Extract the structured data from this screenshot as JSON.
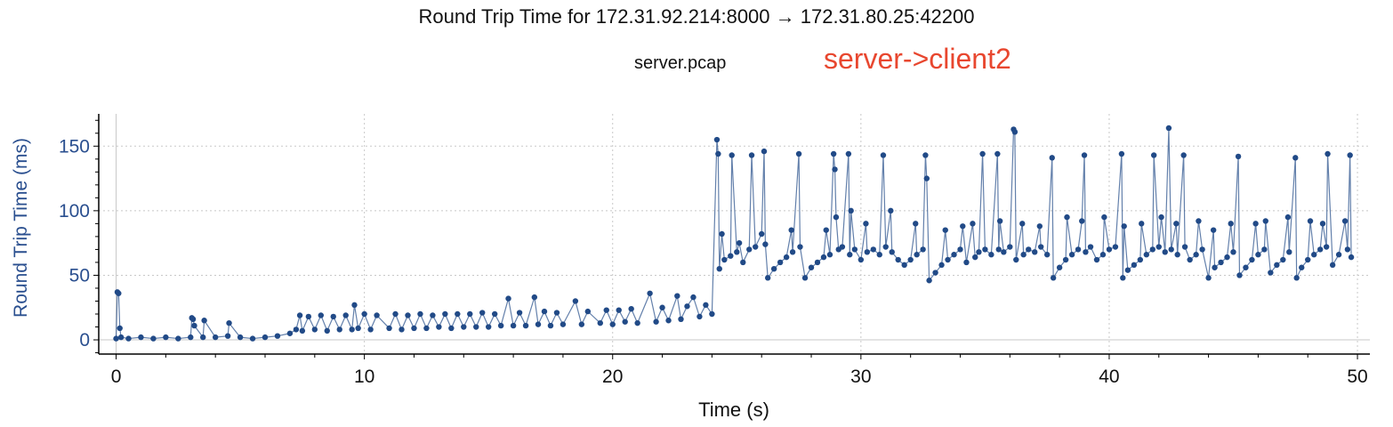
{
  "window": {
    "title": "Round Trip Time for 172.31.92.214:8000 → 172.31.80.25:42200",
    "subtitle": "server.pcap",
    "annotation": "server->client2"
  },
  "colors": {
    "series": "#214a87",
    "axis_label": "#2a4f8f",
    "annotation": "#e8472f",
    "grid": "#c8c8c8"
  },
  "chart_data": {
    "type": "scatter",
    "title": "Round Trip Time for 172.31.92.214:8000 → 172.31.80.25:42200",
    "xlabel": "Time (s)",
    "ylabel": "Round Trip Time (ms)",
    "xlim": [
      -0.7,
      50.5
    ],
    "ylim": [
      -11,
      175
    ],
    "xticks": [
      0,
      10,
      20,
      30,
      40,
      50
    ],
    "yticks": [
      0,
      50,
      100,
      150
    ],
    "grid": true,
    "connected": true,
    "series": [
      {
        "points": [
          [
            0,
            1
          ],
          [
            0.05,
            37
          ],
          [
            0.1,
            36
          ],
          [
            0.15,
            9
          ],
          [
            0.2,
            2
          ],
          [
            0.5,
            1
          ],
          [
            1,
            2
          ],
          [
            1.5,
            1
          ],
          [
            2,
            2
          ],
          [
            2.5,
            1
          ],
          [
            3,
            2
          ],
          [
            3.05,
            17
          ],
          [
            3.1,
            16
          ],
          [
            3.15,
            11
          ],
          [
            3.5,
            2
          ],
          [
            3.55,
            15
          ],
          [
            4,
            2
          ],
          [
            4.5,
            3
          ],
          [
            4.55,
            13
          ],
          [
            5,
            2
          ],
          [
            5.5,
            1
          ],
          [
            6,
            2
          ],
          [
            6.5,
            3
          ],
          [
            7,
            5
          ],
          [
            7.25,
            8
          ],
          [
            7.4,
            19
          ],
          [
            7.5,
            7
          ],
          [
            7.75,
            18
          ],
          [
            8,
            8
          ],
          [
            8.25,
            19
          ],
          [
            8.5,
            7
          ],
          [
            8.75,
            18
          ],
          [
            9,
            8
          ],
          [
            9.25,
            19
          ],
          [
            9.5,
            8
          ],
          [
            9.6,
            27
          ],
          [
            9.75,
            9
          ],
          [
            10,
            20
          ],
          [
            10.25,
            8
          ],
          [
            10.5,
            19
          ],
          [
            11,
            9
          ],
          [
            11.25,
            20
          ],
          [
            11.5,
            8
          ],
          [
            11.75,
            19
          ],
          [
            12,
            9
          ],
          [
            12.25,
            20
          ],
          [
            12.5,
            9
          ],
          [
            12.75,
            19
          ],
          [
            13,
            10
          ],
          [
            13.25,
            20
          ],
          [
            13.5,
            9
          ],
          [
            13.75,
            20
          ],
          [
            14,
            10
          ],
          [
            14.25,
            20
          ],
          [
            14.5,
            10
          ],
          [
            14.75,
            21
          ],
          [
            15,
            10
          ],
          [
            15.25,
            20
          ],
          [
            15.5,
            11
          ],
          [
            15.8,
            32
          ],
          [
            16,
            11
          ],
          [
            16.25,
            21
          ],
          [
            16.5,
            11
          ],
          [
            16.85,
            33
          ],
          [
            17,
            12
          ],
          [
            17.25,
            22
          ],
          [
            17.5,
            11
          ],
          [
            17.75,
            21
          ],
          [
            18,
            12
          ],
          [
            18.5,
            30
          ],
          [
            18.75,
            12
          ],
          [
            19,
            22
          ],
          [
            19.5,
            13
          ],
          [
            19.75,
            23
          ],
          [
            20,
            12
          ],
          [
            20.25,
            23
          ],
          [
            20.5,
            14
          ],
          [
            20.75,
            24
          ],
          [
            21,
            13
          ],
          [
            21.5,
            36
          ],
          [
            21.75,
            14
          ],
          [
            22,
            25
          ],
          [
            22.25,
            15
          ],
          [
            22.6,
            34
          ],
          [
            22.75,
            16
          ],
          [
            23,
            26
          ],
          [
            23.25,
            33
          ],
          [
            23.5,
            18
          ],
          [
            23.75,
            27
          ],
          [
            24,
            20
          ],
          [
            24.2,
            155
          ],
          [
            24.25,
            144
          ],
          [
            24.3,
            55
          ],
          [
            24.4,
            82
          ],
          [
            24.5,
            62
          ],
          [
            24.75,
            65
          ],
          [
            24.8,
            143
          ],
          [
            25,
            68
          ],
          [
            25.1,
            75
          ],
          [
            25.25,
            60
          ],
          [
            25.5,
            70
          ],
          [
            25.6,
            143
          ],
          [
            25.75,
            72
          ],
          [
            26,
            82
          ],
          [
            26.1,
            146
          ],
          [
            26.15,
            74
          ],
          [
            26.25,
            48
          ],
          [
            26.5,
            55
          ],
          [
            26.75,
            60
          ],
          [
            27,
            64
          ],
          [
            27.2,
            85
          ],
          [
            27.25,
            68
          ],
          [
            27.5,
            144
          ],
          [
            27.55,
            72
          ],
          [
            27.75,
            48
          ],
          [
            28,
            56
          ],
          [
            28.25,
            60
          ],
          [
            28.5,
            64
          ],
          [
            28.6,
            85
          ],
          [
            28.75,
            66
          ],
          [
            28.9,
            144
          ],
          [
            28.95,
            132
          ],
          [
            29,
            95
          ],
          [
            29.1,
            70
          ],
          [
            29.25,
            72
          ],
          [
            29.5,
            144
          ],
          [
            29.55,
            66
          ],
          [
            29.6,
            100
          ],
          [
            29.75,
            70
          ],
          [
            30,
            62
          ],
          [
            30.2,
            90
          ],
          [
            30.25,
            68
          ],
          [
            30.5,
            70
          ],
          [
            30.75,
            66
          ],
          [
            30.9,
            143
          ],
          [
            31,
            72
          ],
          [
            31.2,
            100
          ],
          [
            31.25,
            68
          ],
          [
            31.5,
            62
          ],
          [
            31.75,
            58
          ],
          [
            32,
            62
          ],
          [
            32.2,
            90
          ],
          [
            32.25,
            66
          ],
          [
            32.5,
            70
          ],
          [
            32.6,
            143
          ],
          [
            32.65,
            125
          ],
          [
            32.75,
            46
          ],
          [
            33,
            52
          ],
          [
            33.25,
            58
          ],
          [
            33.4,
            85
          ],
          [
            33.5,
            62
          ],
          [
            33.75,
            66
          ],
          [
            34,
            70
          ],
          [
            34.1,
            88
          ],
          [
            34.25,
            60
          ],
          [
            34.5,
            90
          ],
          [
            34.6,
            64
          ],
          [
            34.75,
            68
          ],
          [
            34.9,
            144
          ],
          [
            35,
            70
          ],
          [
            35.25,
            66
          ],
          [
            35.5,
            144
          ],
          [
            35.55,
            70
          ],
          [
            35.6,
            92
          ],
          [
            35.75,
            68
          ],
          [
            36,
            72
          ],
          [
            36.15,
            163
          ],
          [
            36.2,
            161
          ],
          [
            36.25,
            62
          ],
          [
            36.5,
            90
          ],
          [
            36.55,
            66
          ],
          [
            36.75,
            70
          ],
          [
            37,
            68
          ],
          [
            37.2,
            88
          ],
          [
            37.25,
            72
          ],
          [
            37.5,
            66
          ],
          [
            37.7,
            141
          ],
          [
            37.75,
            48
          ],
          [
            38,
            56
          ],
          [
            38.25,
            62
          ],
          [
            38.3,
            95
          ],
          [
            38.5,
            66
          ],
          [
            38.75,
            70
          ],
          [
            38.9,
            92
          ],
          [
            39,
            143
          ],
          [
            39.05,
            68
          ],
          [
            39.25,
            72
          ],
          [
            39.5,
            62
          ],
          [
            39.75,
            66
          ],
          [
            39.8,
            95
          ],
          [
            40,
            70
          ],
          [
            40.25,
            72
          ],
          [
            40.5,
            144
          ],
          [
            40.55,
            48
          ],
          [
            40.6,
            88
          ],
          [
            40.75,
            54
          ],
          [
            41,
            58
          ],
          [
            41.25,
            62
          ],
          [
            41.3,
            90
          ],
          [
            41.5,
            66
          ],
          [
            41.75,
            70
          ],
          [
            41.8,
            143
          ],
          [
            42,
            72
          ],
          [
            42.1,
            95
          ],
          [
            42.25,
            68
          ],
          [
            42.4,
            164
          ],
          [
            42.5,
            70
          ],
          [
            42.7,
            90
          ],
          [
            42.75,
            66
          ],
          [
            43,
            143
          ],
          [
            43.05,
            72
          ],
          [
            43.25,
            62
          ],
          [
            43.5,
            66
          ],
          [
            43.6,
            92
          ],
          [
            43.75,
            70
          ],
          [
            44,
            48
          ],
          [
            44.2,
            85
          ],
          [
            44.25,
            56
          ],
          [
            44.5,
            60
          ],
          [
            44.75,
            64
          ],
          [
            44.9,
            90
          ],
          [
            45,
            68
          ],
          [
            45.2,
            142
          ],
          [
            45.25,
            50
          ],
          [
            45.5,
            56
          ],
          [
            45.75,
            62
          ],
          [
            45.9,
            90
          ],
          [
            46,
            66
          ],
          [
            46.25,
            70
          ],
          [
            46.3,
            92
          ],
          [
            46.5,
            52
          ],
          [
            46.75,
            58
          ],
          [
            47,
            62
          ],
          [
            47.2,
            95
          ],
          [
            47.25,
            68
          ],
          [
            47.5,
            141
          ],
          [
            47.55,
            48
          ],
          [
            47.75,
            56
          ],
          [
            48,
            62
          ],
          [
            48.1,
            92
          ],
          [
            48.25,
            66
          ],
          [
            48.5,
            70
          ],
          [
            48.6,
            90
          ],
          [
            48.75,
            72
          ],
          [
            48.8,
            144
          ],
          [
            49,
            58
          ],
          [
            49.25,
            66
          ],
          [
            49.5,
            92
          ],
          [
            49.6,
            70
          ],
          [
            49.7,
            143
          ],
          [
            49.75,
            64
          ]
        ]
      }
    ]
  }
}
